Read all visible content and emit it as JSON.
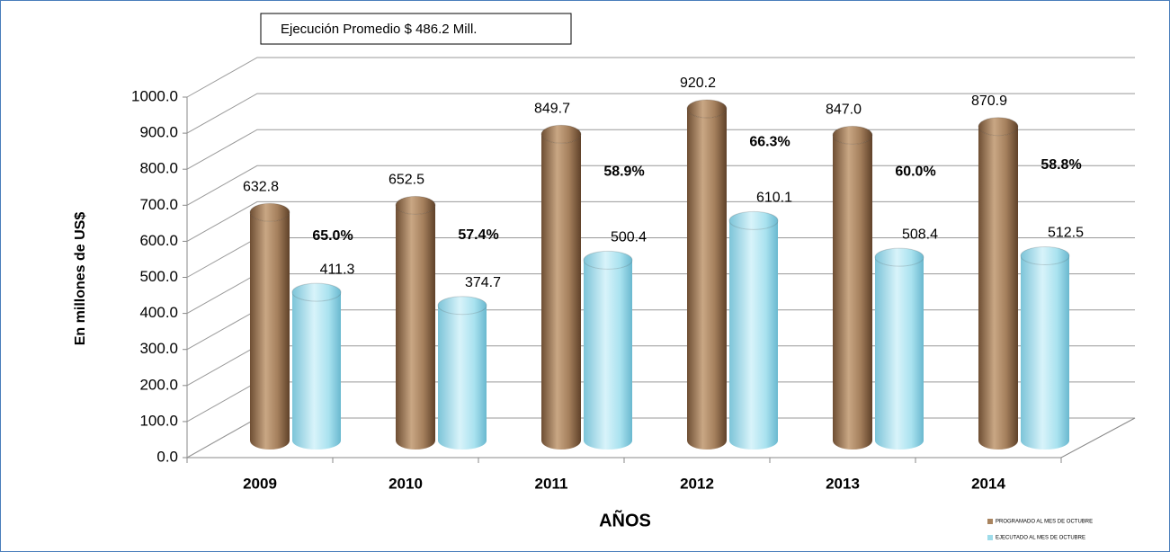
{
  "chart_data": {
    "type": "bar3d",
    "annotation": "Ejecución Promedio $ 486.2 Mill.",
    "y_label": "En millones de US$",
    "x_label": "AÑOS",
    "categories": [
      "2009",
      "2010",
      "2011",
      "2012",
      "2013",
      "2014"
    ],
    "series": [
      {
        "name": "PROGRAMADO AL MES DE OCTUBRE",
        "color": "#a9845f",
        "values": [
          632.8,
          652.5,
          849.7,
          920.2,
          847.0,
          870.9
        ],
        "value_labels": [
          "632.8",
          "652.5",
          "849.7",
          "920.2",
          "847.0",
          "870.9"
        ]
      },
      {
        "name": "EJECUTADO AL MES DE OCTUBRE",
        "color": "#9edcea",
        "values": [
          411.3,
          374.7,
          500.4,
          610.1,
          508.4,
          512.5
        ],
        "value_labels": [
          "411.3",
          "374.7",
          "500.4",
          "610.1",
          "508.4",
          "512.5"
        ]
      }
    ],
    "ratios": {
      "values": [
        65.0,
        57.4,
        58.9,
        66.3,
        60.0,
        58.8
      ],
      "value_labels": [
        "65.0%",
        "57.4%",
        "58.9%",
        "66.3%",
        "60.0%",
        "58.8%"
      ]
    },
    "ylim": [
      0,
      1000
    ],
    "yticks": [
      {
        "value": 0,
        "label": "0.0"
      },
      {
        "value": 100,
        "label": "100.0"
      },
      {
        "value": 200,
        "label": "200.0"
      },
      {
        "value": 300,
        "label": "300.0"
      },
      {
        "value": 400,
        "label": "400.0"
      },
      {
        "value": 500,
        "label": "500.0"
      },
      {
        "value": 600,
        "label": "600.0"
      },
      {
        "value": 700,
        "label": "700.0"
      },
      {
        "value": 800,
        "label": "800.0"
      },
      {
        "value": 900,
        "label": "900.0"
      },
      {
        "value": 1000,
        "label": "1000.0"
      }
    ],
    "grid": true
  }
}
